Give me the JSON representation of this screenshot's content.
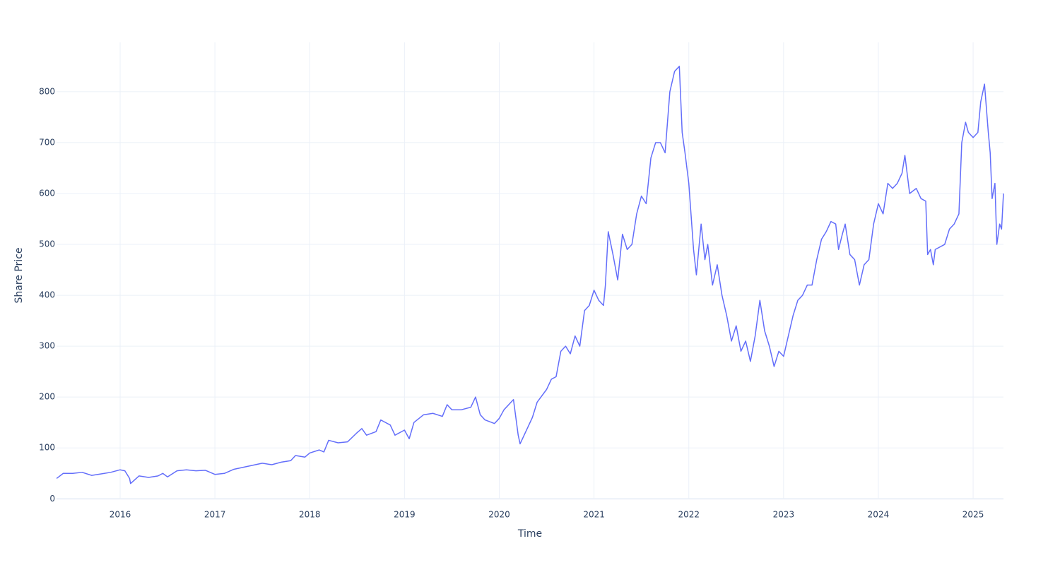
{
  "chart_data": {
    "type": "line",
    "x_label": "Time",
    "y_label": "Share Price",
    "color": "#636efa",
    "grid": true,
    "xlim": [
      2015.329,
      2025.32
    ],
    "ylim": [
      -1,
      897
    ],
    "xticks": [
      2016,
      2017,
      2018,
      2019,
      2020,
      2021,
      2022,
      2023,
      2024,
      2025
    ],
    "yticks": [
      0,
      100,
      200,
      300,
      400,
      500,
      600,
      700,
      800
    ],
    "x": [
      2015.33,
      2015.4,
      2015.5,
      2015.6,
      2015.7,
      2015.8,
      2015.9,
      2016.0,
      2016.05,
      2016.1,
      2016.11,
      2016.2,
      2016.3,
      2016.4,
      2016.45,
      2016.5,
      2016.6,
      2016.7,
      2016.8,
      2016.9,
      2017.0,
      2017.1,
      2017.2,
      2017.3,
      2017.4,
      2017.5,
      2017.6,
      2017.7,
      2017.8,
      2017.85,
      2017.95,
      2018.0,
      2018.1,
      2018.15,
      2018.2,
      2018.3,
      2018.4,
      2018.5,
      2018.55,
      2018.6,
      2018.7,
      2018.75,
      2018.85,
      2018.9,
      2019.0,
      2019.05,
      2019.1,
      2019.2,
      2019.3,
      2019.4,
      2019.45,
      2019.5,
      2019.6,
      2019.7,
      2019.75,
      2019.8,
      2019.85,
      2019.95,
      2020.0,
      2020.05,
      2020.1,
      2020.15,
      2020.2,
      2020.22,
      2020.3,
      2020.35,
      2020.4,
      2020.5,
      2020.55,
      2020.6,
      2020.65,
      2020.7,
      2020.75,
      2020.8,
      2020.85,
      2020.9,
      2020.95,
      2021.0,
      2021.05,
      2021.1,
      2021.12,
      2021.15,
      2021.2,
      2021.25,
      2021.3,
      2021.35,
      2021.4,
      2021.45,
      2021.5,
      2021.55,
      2021.6,
      2021.65,
      2021.7,
      2021.75,
      2021.8,
      2021.85,
      2021.9,
      2021.93,
      2021.96,
      2022.0,
      2022.05,
      2022.08,
      2022.1,
      2022.13,
      2022.17,
      2022.2,
      2022.25,
      2022.3,
      2022.35,
      2022.4,
      2022.45,
      2022.5,
      2022.55,
      2022.6,
      2022.65,
      2022.7,
      2022.75,
      2022.8,
      2022.85,
      2022.9,
      2022.95,
      2023.0,
      2023.05,
      2023.1,
      2023.15,
      2023.2,
      2023.25,
      2023.3,
      2023.35,
      2023.4,
      2023.45,
      2023.5,
      2023.55,
      2023.58,
      2023.62,
      2023.65,
      2023.7,
      2023.75,
      2023.8,
      2023.85,
      2023.9,
      2023.95,
      2024.0,
      2024.05,
      2024.1,
      2024.15,
      2024.2,
      2024.25,
      2024.28,
      2024.33,
      2024.4,
      2024.45,
      2024.5,
      2024.52,
      2024.55,
      2024.58,
      2024.6,
      2024.7,
      2024.75,
      2024.8,
      2024.85,
      2024.88,
      2024.92,
      2024.95,
      2025.0,
      2025.05,
      2025.08,
      2025.12,
      2025.16,
      2025.18,
      2025.2,
      2025.23,
      2025.25,
      2025.28,
      2025.3,
      2025.32
    ],
    "values": [
      40,
      50,
      50,
      52,
      46,
      49,
      52,
      57,
      55,
      40,
      30,
      45,
      42,
      45,
      50,
      43,
      55,
      57,
      55,
      56,
      48,
      50,
      58,
      62,
      66,
      70,
      67,
      72,
      75,
      85,
      82,
      90,
      96,
      92,
      115,
      110,
      112,
      130,
      138,
      125,
      132,
      155,
      145,
      125,
      135,
      118,
      150,
      165,
      168,
      162,
      185,
      175,
      175,
      180,
      200,
      165,
      155,
      148,
      158,
      175,
      185,
      195,
      125,
      108,
      140,
      160,
      190,
      215,
      235,
      240,
      290,
      300,
      285,
      320,
      300,
      370,
      380,
      410,
      390,
      380,
      420,
      525,
      480,
      430,
      520,
      490,
      500,
      560,
      595,
      580,
      670,
      700,
      700,
      680,
      800,
      840,
      850,
      720,
      680,
      620,
      490,
      440,
      480,
      540,
      470,
      500,
      420,
      460,
      400,
      360,
      310,
      340,
      290,
      310,
      270,
      320,
      390,
      330,
      300,
      260,
      290,
      280,
      320,
      360,
      390,
      400,
      420,
      420,
      470,
      510,
      525,
      545,
      540,
      490,
      520,
      540,
      480,
      470,
      420,
      460,
      470,
      540,
      580,
      560,
      620,
      610,
      620,
      640,
      675,
      600,
      610,
      590,
      585,
      480,
      490,
      460,
      490,
      500,
      530,
      540,
      560,
      700,
      740,
      720,
      710,
      720,
      780,
      815,
      720,
      680,
      590,
      620,
      500,
      540,
      530,
      600
    ]
  }
}
